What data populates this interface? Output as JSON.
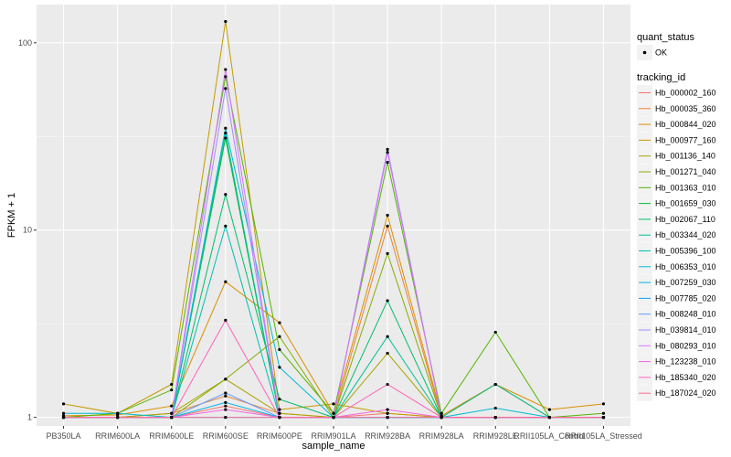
{
  "chart_data": {
    "type": "line",
    "xlabel": "sample_name",
    "ylabel": "FPKM + 1",
    "y_scale": "log10",
    "ylim": [
      0.9,
      160
    ],
    "y_ticks": [
      1,
      10,
      100
    ],
    "y_tick_labels": [
      "1",
      "10",
      "100"
    ],
    "categories": [
      "PB350LA",
      "RRIM600LA",
      "RRIM600LE",
      "RRIM600SE",
      "RRIM600PE",
      "RRIM901LA",
      "RRIM928BA",
      "RRIM928LA",
      "RRIM928LE",
      "RRII105LA_Control",
      "RRII105LA_Stressed"
    ],
    "legend_position": "right",
    "legend_shape": {
      "title": "quant_status",
      "items": [
        "OK"
      ]
    },
    "legend_color_title": "tracking_id",
    "series": [
      {
        "name": "Hb_000002_160",
        "color": "#F8766D",
        "values": [
          1.0,
          1.0,
          1.0,
          1.15,
          1.0,
          1.0,
          1.05,
          1.0,
          1.0,
          1.0,
          1.0
        ]
      },
      {
        "name": "Hb_000035_360",
        "color": "#EB8335",
        "values": [
          1.0,
          1.0,
          1.05,
          1.3,
          1.05,
          1.0,
          10.5,
          1.0,
          1.0,
          1.0,
          1.0
        ]
      },
      {
        "name": "Hb_000844_020",
        "color": "#DA8F00",
        "values": [
          1.02,
          1.03,
          1.15,
          5.3,
          3.2,
          1.05,
          12.0,
          1.02,
          1.5,
          1.1,
          1.18
        ]
      },
      {
        "name": "Hb_000977_160",
        "color": "#C49A00",
        "values": [
          1.18,
          1.05,
          1.5,
          130.0,
          1.1,
          1.18,
          1.05,
          1.0,
          1.5,
          1.0,
          1.0
        ]
      },
      {
        "name": "Hb_001136_140",
        "color": "#A9A400",
        "values": [
          1.0,
          1.0,
          1.05,
          1.6,
          1.05,
          1.0,
          2.2,
          1.0,
          1.0,
          1.0,
          1.0
        ]
      },
      {
        "name": "Hb_001271_040",
        "color": "#86AC00",
        "values": [
          1.0,
          1.0,
          1.0,
          1.6,
          2.7,
          1.0,
          7.5,
          1.0,
          1.0,
          1.0,
          1.0
        ]
      },
      {
        "name": "Hb_001363_010",
        "color": "#53B400",
        "values": [
          1.0,
          1.05,
          1.4,
          66.0,
          2.3,
          1.05,
          23.0,
          1.05,
          2.85,
          1.0,
          1.05
        ]
      },
      {
        "name": "Hb_001659_030",
        "color": "#00BA38",
        "values": [
          1.0,
          1.0,
          1.0,
          31.0,
          1.0,
          1.0,
          1.0,
          1.0,
          1.0,
          1.0,
          1.0
        ]
      },
      {
        "name": "Hb_002067_110",
        "color": "#00BE6C",
        "values": [
          1.0,
          1.0,
          1.0,
          15.5,
          1.25,
          1.0,
          4.2,
          1.0,
          1.0,
          1.0,
          1.0
        ]
      },
      {
        "name": "Hb_003344_020",
        "color": "#00C092",
        "values": [
          1.0,
          1.0,
          1.0,
          33.0,
          1.0,
          1.0,
          2.7,
          1.0,
          1.5,
          1.0,
          1.0
        ]
      },
      {
        "name": "Hb_005396_100",
        "color": "#00C0B2",
        "values": [
          1.0,
          1.0,
          1.0,
          10.5,
          1.0,
          1.0,
          1.0,
          1.0,
          1.0,
          1.0,
          1.0
        ]
      },
      {
        "name": "Hb_006353_010",
        "color": "#00BCD0",
        "values": [
          1.05,
          1.05,
          1.0,
          35.0,
          1.85,
          1.0,
          1.0,
          1.0,
          1.12,
          1.0,
          1.0
        ]
      },
      {
        "name": "Hb_007259_030",
        "color": "#00B4E8",
        "values": [
          1.0,
          1.0,
          1.0,
          1.2,
          1.0,
          1.0,
          1.0,
          1.0,
          1.0,
          1.0,
          1.0
        ]
      },
      {
        "name": "Hb_007785_020",
        "color": "#00A9FF",
        "values": [
          1.0,
          1.0,
          1.0,
          1.0,
          1.0,
          1.0,
          1.0,
          1.0,
          1.0,
          1.0,
          1.0
        ]
      },
      {
        "name": "Hb_008248_010",
        "color": "#619CFF",
        "values": [
          1.0,
          1.0,
          1.0,
          1.35,
          1.0,
          1.0,
          1.0,
          1.0,
          1.0,
          1.0,
          1.0
        ]
      },
      {
        "name": "Hb_039814_010",
        "color": "#A58AFF",
        "values": [
          1.0,
          1.0,
          1.0,
          57.0,
          1.0,
          1.0,
          27.0,
          1.0,
          1.0,
          1.0,
          1.0
        ]
      },
      {
        "name": "Hb_080293_010",
        "color": "#D874FD",
        "values": [
          1.0,
          1.0,
          1.0,
          72.0,
          1.0,
          1.0,
          26.0,
          1.0,
          1.0,
          1.0,
          1.0
        ]
      },
      {
        "name": "Hb_123238_010",
        "color": "#F564E3",
        "values": [
          1.0,
          1.0,
          1.0,
          1.1,
          1.0,
          1.0,
          1.1,
          1.0,
          1.0,
          1.0,
          1.0
        ]
      },
      {
        "name": "Hb_185340_020",
        "color": "#FF62BC",
        "values": [
          1.0,
          1.0,
          1.0,
          3.3,
          1.0,
          1.0,
          1.5,
          1.0,
          1.0,
          1.0,
          1.0
        ]
      },
      {
        "name": "Hb_187024_020",
        "color": "#FF6C91",
        "values": [
          1.0,
          1.0,
          1.0,
          1.0,
          1.0,
          1.0,
          1.0,
          1.0,
          1.0,
          1.0,
          1.0
        ]
      }
    ]
  }
}
